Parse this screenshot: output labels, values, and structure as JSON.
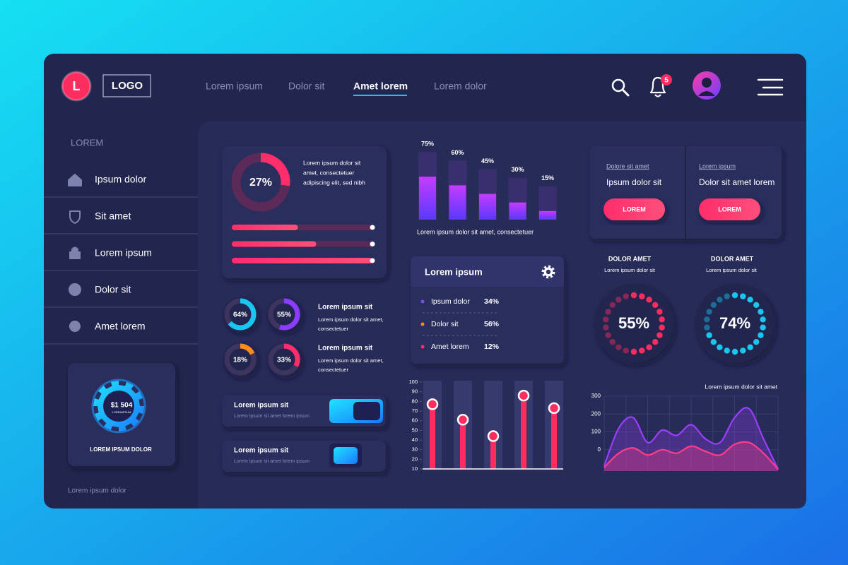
{
  "header": {
    "logo_letter": "L",
    "logo": "LOGO",
    "nav": [
      "Lorem ipsum",
      "Dolor sit",
      "Amet lorem",
      "Lorem dolor"
    ],
    "active_nav": 2,
    "notifications": 5
  },
  "sidebar": {
    "heading": "LOREM",
    "items": [
      "Ipsum dolor",
      "Sit amet",
      "Lorem ipsum",
      "Dolor sit",
      "Amet lorem"
    ],
    "card": {
      "amount": "$1 504",
      "caption": "LOREMIPSUM",
      "label": "LOREM IPSUM DOLOR"
    },
    "footer": "Lorem ipsum dolor"
  },
  "main_donut": {
    "value": 27,
    "label": "27%",
    "lim": [
      0,
      100
    ],
    "text": [
      "Lorem ipsum dolor sit",
      "amet, consectetuer",
      "adipiscing elit, sed nibh"
    ],
    "progress": [
      47,
      60,
      100
    ]
  },
  "small_donuts": {
    "lim": [
      0,
      100
    ],
    "items": [
      {
        "value": 64,
        "label": "64%",
        "color": "#19c6ef"
      },
      {
        "value": 55,
        "label": "55%",
        "color": "#8a3dff"
      },
      {
        "value": 18,
        "label": "18%",
        "color": "#ff8a1e"
      },
      {
        "value": 33,
        "label": "33%",
        "color": "#ff2d6b"
      }
    ],
    "texts": [
      {
        "title": "Lorem ipsum sit",
        "body": [
          "Lorem ipsum dolor sit amet,",
          "consectetuer"
        ]
      },
      {
        "title": "Lorem ipsum sit",
        "body": [
          "Lorem ipsum dolor sit amet,",
          "consectetuer"
        ]
      }
    ]
  },
  "toggles": [
    {
      "title": "Lorem ipsum sit",
      "body": "Lorem ipsum sit amet lorem ipsum"
    },
    {
      "title": "Lorem ipsum sit",
      "body": "Lorem ipsum sit amet lorem ipsum"
    }
  ],
  "bar_chart": {
    "type": "bar",
    "values": [
      75,
      60,
      45,
      30,
      15
    ],
    "value_labels": [
      "75%",
      "60%",
      "45%",
      "30%",
      "15%"
    ],
    "ylim": [
      0,
      100
    ],
    "caption": "Lorem ipsum dolor sit amet, consectetuer"
  },
  "list_card": {
    "title": "Lorem ipsum",
    "rows": [
      {
        "name": "Ipsum dolor",
        "value": "34%",
        "color": "#7b4dff"
      },
      {
        "name": "Dolor sit",
        "value": "56%",
        "color": "#ff8a1e"
      },
      {
        "name": "Amet lorem",
        "value": "12%",
        "color": "#ff2d6b"
      }
    ]
  },
  "lollipop_chart": {
    "type": "lollipop",
    "values": [
      77,
      61,
      44,
      86,
      73
    ],
    "ylim": [
      10,
      100
    ],
    "yticks": [
      10,
      20,
      30,
      40,
      50,
      60,
      70,
      80,
      90,
      100
    ],
    "color": "#ff2d5f"
  },
  "cta_cards": [
    {
      "kicker": "Dolore sit amet",
      "title": "Ipsum dolor sit",
      "button": "LOREM"
    },
    {
      "kicker": "Lorem ipsum",
      "title": "Dolor sit amet lorem",
      "button": "LOREM"
    }
  ],
  "gauges": {
    "lim": [
      0,
      100
    ],
    "items": [
      {
        "title": "DOLOR AMET",
        "subtitle": "Lorem ipsum dolor sit",
        "value": 55,
        "label": "55%",
        "color": "#ff2d5f"
      },
      {
        "title": "DOLOR AMET",
        "subtitle": "Lorem ipsum dolor sit",
        "value": 74,
        "label": "74%",
        "color": "#19c6ef"
      }
    ]
  },
  "area_chart": {
    "type": "area",
    "title": "Lorem ipsum dolor sit amet",
    "ylim": [
      -120,
      300
    ],
    "yticks": [
      0,
      100,
      200,
      300
    ],
    "grid": true,
    "series": [
      {
        "color": "#9b3dff",
        "values": [
          -90,
          120,
          180,
          40,
          110,
          80,
          140,
          60,
          40,
          180,
          230,
          60,
          -110
        ]
      },
      {
        "color": "#ff3d8a",
        "values": [
          -100,
          -20,
          10,
          -30,
          0,
          -20,
          20,
          -10,
          -30,
          30,
          40,
          -20,
          -110
        ]
      }
    ]
  }
}
